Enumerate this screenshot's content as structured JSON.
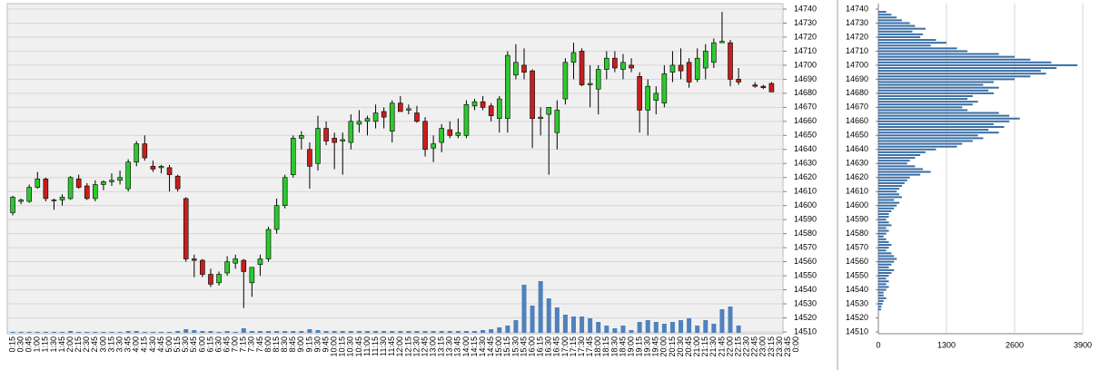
{
  "chart_data": [
    {
      "type": "candlestick",
      "categories": [
        "0:15",
        "0:30",
        "0:45",
        "1:00",
        "1:15",
        "1:30",
        "1:45",
        "2:00",
        "2:15",
        "2:30",
        "2:45",
        "3:00",
        "3:15",
        "3:30",
        "3:45",
        "4:00",
        "4:15",
        "4:30",
        "4:45",
        "5:00",
        "5:15",
        "5:30",
        "5:45",
        "6:00",
        "6:15",
        "6:30",
        "6:45",
        "7:00",
        "7:15",
        "7:30",
        "7:45",
        "8:00",
        "8:15",
        "8:30",
        "8:45",
        "9:00",
        "9:15",
        "9:30",
        "9:45",
        "10:00",
        "10:15",
        "10:30",
        "10:45",
        "11:00",
        "11:15",
        "11:30",
        "11:45",
        "12:00",
        "12:15",
        "12:30",
        "12:45",
        "13:00",
        "13:15",
        "13:30",
        "13:45",
        "14:00",
        "14:15",
        "14:30",
        "14:45",
        "15:00",
        "15:15",
        "15:30",
        "15:45",
        "16:00",
        "16:15",
        "16:30",
        "16:45",
        "17:00",
        "17:15",
        "17:30",
        "17:45",
        "18:00",
        "18:15",
        "18:30",
        "18:45",
        "19:00",
        "19:15",
        "19:30",
        "19:45",
        "20:00",
        "20:15",
        "20:30",
        "20:45",
        "21:00",
        "21:15",
        "21:30",
        "21:45",
        "22:00",
        "22:15",
        "22:30",
        "22:45",
        "23:00",
        "23:15",
        "23:30",
        "23:45",
        "0:00"
      ],
      "open": [
        14595,
        14603,
        14603,
        14613,
        14619,
        14604,
        14604,
        14605,
        14619,
        14614,
        14605,
        14615,
        14617,
        14618,
        14612,
        14631,
        14644,
        14628,
        14627,
        14627,
        14621,
        14605,
        14562,
        14561,
        14551,
        14545,
        14552,
        14559,
        14561,
        14545,
        14558,
        14562,
        14583,
        14600,
        14622,
        14648,
        14640,
        14630,
        14655,
        14648,
        14646,
        14645,
        14658,
        14660,
        14660,
        14667,
        14653,
        14673,
        14668,
        14666,
        14660,
        14641,
        14645,
        14654,
        14650,
        14650,
        14671,
        14674,
        14671,
        14662,
        14662,
        14693,
        14700,
        14696,
        14662,
        14665,
        14652,
        14676,
        14702,
        14710,
        14686,
        14683,
        14697,
        14705,
        14697,
        14700,
        14692,
        14668,
        14675,
        14673,
        14695,
        14700,
        14702,
        14690,
        14698,
        14702,
        14716,
        14716,
        14690,
        null,
        14686,
        14685,
        14687,
        null,
        null,
        null
      ],
      "high": [
        14607,
        14605,
        14615,
        14624,
        14620,
        14605,
        14608,
        14621,
        14622,
        14616,
        14618,
        14618,
        14623,
        14625,
        14633,
        14646,
        14650,
        14632,
        14629,
        14629,
        14622,
        14606,
        14565,
        14562,
        14555,
        14553,
        14564,
        14565,
        14562,
        14556,
        14565,
        14585,
        14605,
        14622,
        14650,
        14653,
        14645,
        14664,
        14660,
        14652,
        14652,
        14665,
        14668,
        14664,
        14672,
        14670,
        14675,
        14678,
        14672,
        14671,
        14663,
        14650,
        14658,
        14660,
        14662,
        14675,
        14676,
        14678,
        14673,
        14678,
        14710,
        14715,
        14712,
        14697,
        14670,
        14670,
        14675,
        14705,
        14716,
        14712,
        14700,
        14700,
        14710,
        14710,
        14708,
        14705,
        14695,
        14690,
        14685,
        14700,
        14710,
        14712,
        14705,
        14712,
        14715,
        14719,
        14738,
        14718,
        14698,
        null,
        14688,
        14686,
        14688,
        null,
        null,
        null
      ],
      "low": [
        14593,
        14601,
        14602,
        14612,
        14603,
        14597,
        14600,
        14604,
        14612,
        14604,
        14603,
        14611,
        14614,
        14615,
        14610,
        14628,
        14632,
        14624,
        14623,
        14610,
        14610,
        14560,
        14549,
        14549,
        14542,
        14543,
        14550,
        14555,
        14527,
        14535,
        14550,
        14560,
        14580,
        14598,
        14620,
        14640,
        14612,
        14625,
        14643,
        14626,
        14622,
        14640,
        14652,
        14650,
        14655,
        14655,
        14645,
        14667,
        14665,
        14659,
        14635,
        14631,
        14638,
        14648,
        14648,
        14648,
        14668,
        14668,
        14660,
        14652,
        14652,
        14690,
        14690,
        14641,
        14650,
        14622,
        14640,
        14672,
        14690,
        14685,
        14670,
        14665,
        14690,
        14695,
        14690,
        14695,
        14652,
        14650,
        14665,
        14670,
        14688,
        14690,
        14684,
        14688,
        14690,
        14698,
        14716,
        14685,
        14686,
        null,
        14684,
        14683,
        14681,
        null,
        null,
        null
      ],
      "close": [
        14606,
        14604,
        14613,
        14619,
        14605,
        14604,
        14606,
        14620,
        14613,
        14605,
        14615,
        14617,
        14618,
        14620,
        14631,
        14644,
        14634,
        14626,
        14628,
        14622,
        14612,
        14562,
        14561,
        14551,
        14544,
        14551,
        14560,
        14562,
        14553,
        14556,
        14562,
        14583,
        14600,
        14620,
        14648,
        14650,
        14628,
        14655,
        14646,
        14645,
        14647,
        14660,
        14660,
        14662,
        14666,
        14663,
        14673,
        14667,
        14669,
        14660,
        14640,
        14644,
        14655,
        14650,
        14652,
        14672,
        14674,
        14670,
        14664,
        14676,
        14707,
        14702,
        14695,
        14662,
        14663,
        14670,
        14668,
        14702,
        14709,
        14686,
        14687,
        14697,
        14705,
        14698,
        14702,
        14698,
        14668,
        14685,
        14680,
        14694,
        14700,
        14696,
        14688,
        14705,
        14710,
        14716,
        14717,
        14690,
        14688,
        null,
        14685,
        14684,
        14681,
        null,
        null,
        null
      ],
      "volume": [
        1,
        1,
        1,
        1,
        1,
        1,
        1,
        2,
        1,
        1,
        1,
        1,
        1,
        1,
        2,
        2,
        1,
        1,
        1,
        1,
        2,
        4,
        3,
        2,
        2,
        1,
        2,
        1,
        5,
        2,
        2,
        2,
        2,
        2,
        2,
        2,
        4,
        3,
        2,
        2,
        2,
        2,
        2,
        2,
        2,
        2,
        2,
        2,
        2,
        2,
        2,
        2,
        2,
        2,
        2,
        2,
        2,
        3,
        4,
        6,
        8,
        14,
        53,
        30,
        57,
        38,
        28,
        20,
        18,
        18,
        16,
        12,
        8,
        5,
        8,
        3,
        12,
        14,
        12,
        10,
        12,
        14,
        16,
        8,
        14,
        10,
        26,
        29,
        8,
        null,
        null,
        null,
        null,
        null,
        null,
        null
      ],
      "up_color": "#2ec82e",
      "down_color": "#c81e1e",
      "volume_color": "#4f81bd",
      "ylim": [
        14510,
        14740
      ],
      "yticks": [
        14510,
        14520,
        14530,
        14540,
        14550,
        14560,
        14570,
        14580,
        14590,
        14600,
        14610,
        14620,
        14630,
        14640,
        14650,
        14660,
        14670,
        14680,
        14690,
        14700,
        14710,
        14720,
        14730,
        14740
      ],
      "grid": true
    },
    {
      "type": "barh",
      "y": [
        14738,
        14736,
        14734,
        14732,
        14730,
        14728,
        14726,
        14724,
        14722,
        14720,
        14718,
        14716,
        14714,
        14712,
        14710,
        14708,
        14706,
        14704,
        14702,
        14700,
        14698,
        14696,
        14694,
        14692,
        14690,
        14688,
        14686,
        14684,
        14682,
        14680,
        14678,
        14676,
        14674,
        14672,
        14670,
        14668,
        14666,
        14664,
        14662,
        14660,
        14658,
        14656,
        14654,
        14652,
        14650,
        14648,
        14646,
        14644,
        14642,
        14640,
        14638,
        14636,
        14634,
        14632,
        14630,
        14628,
        14626,
        14624,
        14622,
        14620,
        14618,
        14616,
        14614,
        14612,
        14610,
        14608,
        14606,
        14604,
        14602,
        14600,
        14598,
        14596,
        14594,
        14592,
        14590,
        14588,
        14586,
        14584,
        14582,
        14580,
        14578,
        14576,
        14574,
        14572,
        14570,
        14568,
        14566,
        14564,
        14562,
        14560,
        14558,
        14556,
        14554,
        14552,
        14550,
        14548,
        14546,
        14544,
        14542,
        14540,
        14538,
        14536,
        14534,
        14532,
        14530,
        14528,
        14526
      ],
      "values": [
        150,
        250,
        350,
        450,
        600,
        700,
        900,
        650,
        850,
        800,
        1100,
        1300,
        1000,
        1500,
        1700,
        2300,
        2600,
        2900,
        3300,
        3800,
        3400,
        3100,
        3200,
        2900,
        2600,
        2200,
        2000,
        2300,
        2100,
        2200,
        1800,
        1700,
        1900,
        1800,
        1600,
        1700,
        2300,
        2500,
        2700,
        2500,
        2200,
        2400,
        2100,
        2300,
        1900,
        2000,
        1800,
        1600,
        1500,
        1100,
        900,
        800,
        700,
        600,
        550,
        700,
        850,
        1000,
        800,
        600,
        550,
        500,
        450,
        400,
        350,
        400,
        450,
        300,
        400,
        350,
        300,
        250,
        200,
        200,
        150,
        200,
        250,
        150,
        200,
        150,
        100,
        150,
        200,
        250,
        200,
        150,
        250,
        300,
        350,
        300,
        250,
        200,
        300,
        250,
        200,
        150,
        200,
        150,
        200,
        150,
        100,
        100,
        150,
        100,
        80,
        60,
        50
      ],
      "color": "#3a6ea5",
      "ylim": [
        14510,
        14740
      ],
      "yticks": [
        14510,
        14520,
        14530,
        14540,
        14550,
        14560,
        14570,
        14580,
        14590,
        14600,
        14610,
        14620,
        14630,
        14640,
        14650,
        14660,
        14670,
        14680,
        14690,
        14700,
        14710,
        14720,
        14730,
        14740
      ],
      "xlim": [
        0,
        3900
      ],
      "xticks": [
        0,
        1300,
        2600,
        3900
      ],
      "grid": true
    }
  ]
}
